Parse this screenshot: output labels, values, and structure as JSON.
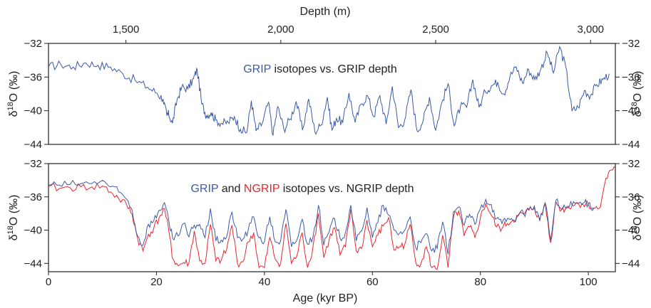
{
  "colors": {
    "grip": "#3a5aa8",
    "ngrip": "#e8262e",
    "axis": "#222222"
  },
  "chart_data": [
    {
      "type": "line",
      "title_parts": [
        {
          "text": "GRIP",
          "color": "#3a5aa8"
        },
        {
          "text": " isotopes vs. GRIP depth",
          "color": "#222222"
        }
      ],
      "top_axis": {
        "label": "Depth (m)",
        "ticks": [
          1500,
          2000,
          2500,
          3000
        ],
        "tick_labels": [
          "1,500",
          "2,000",
          "2,500",
          "3,000"
        ],
        "xlim": [
          1250,
          3080
        ]
      },
      "ylabel": "δ18O (‰)",
      "ylabel_color": "#3a5aa8",
      "ylim": [
        -44,
        -32
      ],
      "y_ticks": [
        -32,
        -36,
        -40,
        -44
      ],
      "y_tick_labels": [
        "−32",
        "−36",
        "−40",
        "−44"
      ],
      "series": [
        {
          "name": "GRIP",
          "color": "#3a5aa8",
          "x": [
            1250,
            1290,
            1330,
            1370,
            1410,
            1450,
            1490,
            1530,
            1570,
            1600,
            1620,
            1632,
            1638,
            1650,
            1665,
            1680,
            1700,
            1718,
            1730,
            1745,
            1760,
            1775,
            1790,
            1810,
            1830,
            1850,
            1870,
            1890,
            1905,
            1920,
            1940,
            1960,
            1975,
            1990,
            2010,
            2030,
            2050,
            2070,
            2090,
            2110,
            2130,
            2150,
            2165,
            2180,
            2200,
            2220,
            2240,
            2260,
            2280,
            2300,
            2320,
            2340,
            2360,
            2380,
            2400,
            2420,
            2440,
            2460,
            2480,
            2500,
            2520,
            2540,
            2560,
            2580,
            2600,
            2620,
            2640,
            2660,
            2680,
            2700,
            2720,
            2740,
            2760,
            2780,
            2800,
            2820,
            2840,
            2860,
            2880,
            2900,
            2920,
            2940,
            2960,
            2980,
            3000,
            3020,
            3040,
            3060
          ],
          "y": [
            -34.8,
            -34.5,
            -34.8,
            -34.3,
            -34.6,
            -34.8,
            -35.6,
            -36.4,
            -37.2,
            -37.9,
            -38.6,
            -40.6,
            -40.4,
            -41.5,
            -38.7,
            -37.2,
            -37.4,
            -36.2,
            -35.1,
            -39.2,
            -40.6,
            -40.2,
            -41.1,
            -41.5,
            -41.4,
            -40.7,
            -42.2,
            -42.6,
            -38.8,
            -42.4,
            -41.5,
            -39.0,
            -42.9,
            -39.5,
            -42.2,
            -41.0,
            -38.9,
            -42.3,
            -38.6,
            -42.5,
            -41.7,
            -38.4,
            -42.3,
            -40.9,
            -41.4,
            -37.9,
            -41.4,
            -39.2,
            -38.2,
            -40.7,
            -38.2,
            -41.6,
            -37.1,
            -42.0,
            -41.1,
            -37.5,
            -42.4,
            -41.1,
            -38.4,
            -42.3,
            -39.0,
            -36.8,
            -41.8,
            -39.5,
            -39.6,
            -36.3,
            -39.6,
            -37.7,
            -37.0,
            -36.6,
            -38.0,
            -35.9,
            -34.8,
            -36.7,
            -35.1,
            -36.3,
            -35.0,
            -33.1,
            -35.5,
            -32.4,
            -34.8,
            -40.0,
            -39.6,
            -37.6,
            -38.2,
            -36.9,
            -36.3,
            -35.6
          ]
        }
      ]
    },
    {
      "type": "line",
      "title_parts": [
        {
          "text": "GRIP",
          "color": "#3a5aa8"
        },
        {
          "text": " and ",
          "color": "#222222"
        },
        {
          "text": "NGRIP",
          "color": "#e8262e"
        },
        {
          "text": " isotopes vs. NGRIP depth",
          "color": "#222222"
        }
      ],
      "xlabel": "Age (kyr BP)",
      "xlim": [
        0,
        105
      ],
      "x_ticks": [
        0,
        20,
        40,
        60,
        80,
        100
      ],
      "x_tick_labels": [
        "0",
        "20",
        "40",
        "60",
        "80",
        "100"
      ],
      "ylabel_left": "δ18O (‰)",
      "ylabel_left_color": "#3a5aa8",
      "ylabel_right": "δ18O (‰)",
      "ylabel_right_color": "#e8262e",
      "ylim": [
        -45,
        -32
      ],
      "y_ticks": [
        -32,
        -36,
        -40,
        -44
      ],
      "y_tick_labels": [
        "−32",
        "−36",
        "−40",
        "−44"
      ],
      "series": [
        {
          "name": "NGRIP",
          "color": "#e8262e",
          "x": [
            0,
            2,
            4,
            6,
            8,
            10,
            11.5,
            13,
            14.5,
            15.5,
            16.5,
            17.5,
            18.5,
            19.5,
            20.5,
            21.5,
            22.5,
            23,
            24,
            25,
            26,
            27,
            28,
            29,
            30,
            31,
            32,
            33,
            34,
            35,
            36,
            37,
            38,
            39,
            40,
            41,
            42,
            43,
            44,
            45,
            46,
            47,
            48,
            49,
            50,
            51,
            52,
            53,
            54,
            55,
            56,
            57,
            58,
            59,
            60,
            61,
            62,
            63,
            64,
            65,
            66,
            67,
            68,
            69,
            70,
            71,
            72,
            73,
            74,
            75,
            76,
            77,
            78,
            79,
            80,
            81,
            82,
            83,
            84,
            85,
            86,
            87,
            88,
            89,
            90,
            91,
            92,
            93,
            94,
            95,
            96,
            97,
            98,
            99,
            100,
            101,
            102,
            103,
            104,
            105
          ],
          "y": [
            -34.8,
            -35.0,
            -34.9,
            -34.8,
            -34.8,
            -34.7,
            -35.4,
            -36.2,
            -37.0,
            -38.1,
            -41.0,
            -42.5,
            -40.5,
            -39.8,
            -38.5,
            -37.4,
            -41.0,
            -43.4,
            -44.3,
            -43.9,
            -44.0,
            -40.1,
            -43.7,
            -44.0,
            -39.3,
            -43.7,
            -43.6,
            -42.3,
            -39.4,
            -44.0,
            -43.8,
            -41.4,
            -40.3,
            -44.5,
            -44.5,
            -40.9,
            -43.5,
            -44.0,
            -39.2,
            -44.0,
            -43.1,
            -40.3,
            -44.5,
            -42.0,
            -38.0,
            -43.3,
            -41.1,
            -39.7,
            -43.0,
            -42.0,
            -37.5,
            -42.5,
            -42.2,
            -38.8,
            -42.0,
            -40.6,
            -39.5,
            -38.5,
            -42.4,
            -42.0,
            -41.7,
            -39.3,
            -43.8,
            -44.0,
            -42.0,
            -44.5,
            -44.7,
            -40.6,
            -44.5,
            -38.5,
            -37.7,
            -40.7,
            -39.6,
            -40.9,
            -38.5,
            -36.8,
            -38.2,
            -39.6,
            -39.8,
            -39.2,
            -38.8,
            -38.3,
            -38.1,
            -37.6,
            -37.3,
            -38.9,
            -36.8,
            -41.5,
            -36.6,
            -37.6,
            -37.3,
            -37.0,
            -36.8,
            -36.9,
            -36.9,
            -37.4,
            -37.4,
            -34.5,
            -32.8,
            -32.5
          ]
        },
        {
          "name": "GRIP",
          "color": "#3a5aa8",
          "x": [
            0,
            2,
            4,
            6,
            8,
            10,
            11.5,
            13,
            14.5,
            15.5,
            16.5,
            17.5,
            18.5,
            19.5,
            20.5,
            21.5,
            22.5,
            23,
            24,
            25,
            26,
            27,
            28,
            29,
            30,
            31,
            32,
            33,
            34,
            35,
            36,
            37,
            38,
            39,
            40,
            41,
            42,
            43,
            44,
            45,
            46,
            47,
            48,
            49,
            50,
            51,
            52,
            53,
            54,
            55,
            56,
            57,
            58,
            59,
            60,
            61,
            62,
            63,
            64,
            65,
            66,
            67,
            68,
            69,
            70,
            71,
            72,
            73,
            74,
            75,
            76,
            77,
            78,
            79,
            80,
            81,
            82,
            83,
            84,
            85,
            86,
            87,
            88,
            89,
            90,
            91,
            92,
            93,
            94,
            95,
            96,
            97,
            98,
            99,
            100,
            101
          ],
          "y": [
            -34.5,
            -34.6,
            -34.5,
            -34.4,
            -34.4,
            -34.0,
            -34.8,
            -35.4,
            -36.3,
            -37.6,
            -40.7,
            -41.8,
            -39.3,
            -38.9,
            -37.6,
            -36.7,
            -39.8,
            -41.0,
            -40.7,
            -39.2,
            -40.8,
            -39.4,
            -39.3,
            -40.9,
            -37.4,
            -41.3,
            -41.2,
            -40.8,
            -37.8,
            -40.9,
            -41.1,
            -40.0,
            -38.4,
            -40.9,
            -41.4,
            -38.4,
            -41.4,
            -41.3,
            -37.5,
            -42.0,
            -41.2,
            -38.7,
            -41.7,
            -40.8,
            -37.0,
            -41.8,
            -40.2,
            -38.6,
            -41.0,
            -40.3,
            -37.0,
            -41.3,
            -40.1,
            -37.3,
            -40.9,
            -39.1,
            -37.0,
            -38.2,
            -40.0,
            -40.4,
            -40.0,
            -38.4,
            -42.1,
            -41.5,
            -40.4,
            -42.5,
            -42.2,
            -39.0,
            -42.9,
            -37.8,
            -37.2,
            -39.4,
            -38.1,
            -39.3,
            -37.4,
            -36.3,
            -36.9,
            -38.6,
            -39.2,
            -38.6,
            -38.8,
            -38.2,
            -38.0,
            -37.5,
            -37.1,
            -38.8,
            -36.7,
            -41.2,
            -36.4,
            -37.5,
            -37.2,
            -37.0,
            -36.7,
            -36.8,
            -36.8,
            -37.3
          ]
        }
      ]
    }
  ]
}
